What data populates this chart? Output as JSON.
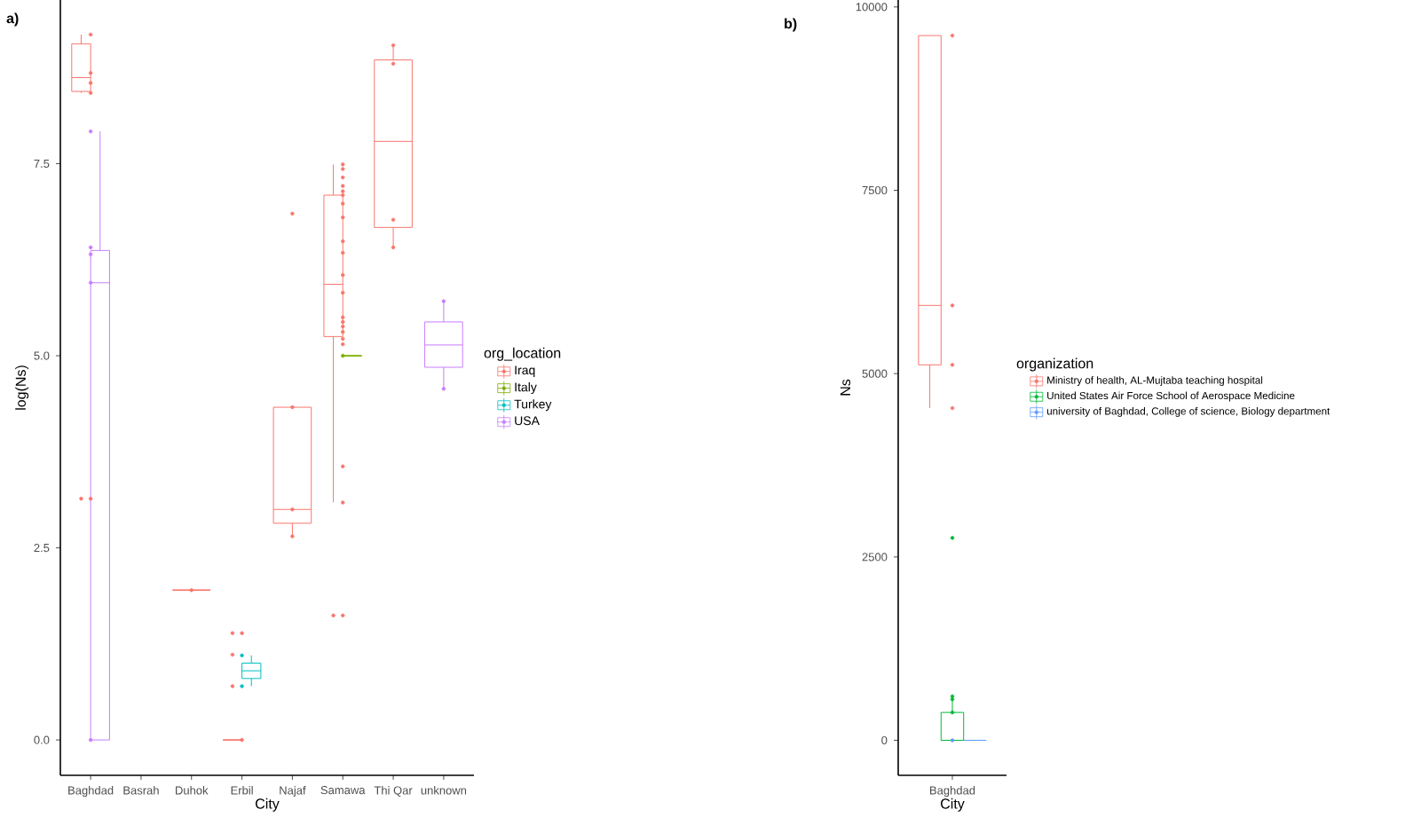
{
  "chart_data": [
    {
      "type": "box",
      "title": "a)",
      "xlabel": "City",
      "ylabel": "log(Ns)",
      "legend_title": "org_location",
      "legend": "right",
      "marker": "circle",
      "categories": [
        "Baghdad",
        "Basrah",
        "Duhok",
        "Erbil",
        "Najaf",
        "Samawa",
        "Thi Qar",
        "unknown"
      ],
      "ylim": [
        -0.46,
        9.63
      ],
      "yticks": [
        {
          "value": 0,
          "label": "0.0"
        },
        {
          "value": 2.5,
          "label": "2.5"
        },
        {
          "value": 5,
          "label": "5.0"
        },
        {
          "value": 7.5,
          "label": "7.5"
        }
      ],
      "series": [
        {
          "name": "Iraq",
          "color": "#f8766d",
          "boxes": [
            {
              "low": 8.42,
              "q1": 8.44,
              "median": 8.62,
              "q3": 9.06,
              "high": 9.18,
              "outliers": [
                3.14
              ]
            },
            null,
            {
              "low": 1.95,
              "q1": 1.95,
              "median": 1.95,
              "q3": 1.95,
              "high": 1.95
            },
            {
              "low": 0,
              "q1": 0,
              "median": 0,
              "q3": 0,
              "high": 0,
              "outliers": [
                0.7,
                1.11,
                1.39
              ]
            },
            {
              "low": 2.65,
              "q1": 2.82,
              "median": 3.0,
              "q3": 4.33,
              "high": 4.33
            },
            {
              "low": 3.09,
              "q1": 5.25,
              "median": 5.93,
              "q3": 7.09,
              "high": 7.49,
              "outliers": [
                1.62
              ]
            },
            {
              "low": 6.41,
              "q1": 6.67,
              "median": 7.79,
              "q3": 8.85,
              "high": 9.04
            },
            null
          ]
        },
        {
          "name": "Italy",
          "color": "#7cae00",
          "boxes": [
            null,
            null,
            null,
            null,
            null,
            {
              "low": 5.0,
              "q1": 5.0,
              "median": 5.0,
              "q3": 5.0,
              "high": 5.0
            },
            null,
            null
          ]
        },
        {
          "name": "Turkey",
          "color": "#00bfc4",
          "boxes": [
            null,
            null,
            null,
            {
              "low": 0.7,
              "q1": 0.8,
              "median": 0.9,
              "q3": 1.0,
              "high": 1.1
            },
            null,
            null,
            null,
            null
          ]
        },
        {
          "name": "USA",
          "color": "#c77cff",
          "boxes": [
            {
              "low": 0,
              "q1": 0,
              "median": 5.95,
              "q3": 6.37,
              "high": 7.92
            },
            null,
            null,
            null,
            null,
            null,
            null,
            {
              "low": 4.57,
              "q1": 4.85,
              "median": 5.14,
              "q3": 5.44,
              "high": 5.71
            }
          ]
        },
        {
          "type": "scatter",
          "color": "#f8766d",
          "x": [
            "Baghdad",
            "Baghdad",
            "Baghdad",
            "Baghdad",
            "Baghdad",
            "Duhok",
            "Erbil",
            "Erbil",
            "Najaf",
            "Najaf",
            "Najaf",
            "Najaf",
            "Samawa",
            "Samawa",
            "Samawa",
            "Samawa",
            "Samawa",
            "Samawa",
            "Samawa",
            "Samawa",
            "Samawa",
            "Samawa",
            "Samawa",
            "Samawa",
            "Samawa",
            "Samawa",
            "Samawa",
            "Samawa",
            "Samawa",
            "Samawa",
            "Samawa",
            "Samawa",
            "Samawa",
            "Samawa",
            "Thi Qar",
            "Thi Qar",
            "Thi Qar",
            "Thi Qar"
          ],
          "values": [
            9.18,
            8.68,
            8.55,
            8.42,
            3.14,
            1.95,
            1.39,
            0,
            6.85,
            4.33,
            3.0,
            2.65,
            7.49,
            7.43,
            7.32,
            7.21,
            7.14,
            7.09,
            6.98,
            6.8,
            6.49,
            6.34,
            6.05,
            5.82,
            5.5,
            5.44,
            5.38,
            5.31,
            5.22,
            5.15,
            null,
            3.56,
            3.09,
            1.62,
            9.04,
            8.8,
            6.77,
            6.41
          ]
        },
        {
          "type": "scatter",
          "color": "#7cae00",
          "x": [
            "Samawa"
          ],
          "values": [
            5.0
          ]
        },
        {
          "type": "scatter",
          "color": "#00bfc4",
          "x": [
            "Erbil",
            "Erbil"
          ],
          "values": [
            1.1,
            0.7
          ]
        },
        {
          "type": "scatter",
          "color": "#c77cff",
          "x": [
            "Baghdad",
            "Baghdad",
            "Baghdad",
            "Baghdad",
            "Baghdad",
            "unknown",
            "unknown"
          ],
          "values": [
            7.92,
            6.41,
            6.32,
            5.95,
            0,
            5.71,
            4.57
          ]
        }
      ]
    },
    {
      "type": "box",
      "title": "b)",
      "xlabel": "City",
      "ylabel": "Ns",
      "legend_title": "organization",
      "legend": "right",
      "marker": "circle",
      "categories": [
        "Baghdad"
      ],
      "ylim": [
        -477,
        10095
      ],
      "yticks": [
        0,
        2500,
        5000,
        7500,
        10000
      ],
      "series": [
        {
          "name": "Ministry of health, AL-Mujtaba teaching hospital",
          "color": "#f8766d",
          "boxes": [
            {
              "low": 4530,
              "q1": 5120,
              "median": 5930,
              "q3": 9610,
              "high": 9610
            }
          ]
        },
        {
          "name": "United States Air Force School of Aerospace Medicine",
          "color": "#00ba38",
          "boxes": [
            {
              "low": 0,
              "q1": 0,
              "median": 0,
              "q3": 380,
              "high": 600
            }
          ]
        },
        {
          "name": "university of Baghdad, College of science, Biology department",
          "color": "#619cff",
          "boxes": [
            {
              "low": 0,
              "q1": 0,
              "median": 0,
              "q3": 0,
              "high": 0
            }
          ]
        },
        {
          "type": "scatter",
          "color": "#f8766d",
          "x": [
            "Baghdad",
            "Baghdad",
            "Baghdad",
            "Baghdad"
          ],
          "values": [
            9610,
            5930,
            5120,
            4530
          ]
        },
        {
          "type": "scatter",
          "color": "#00ba38",
          "x": [
            "Baghdad",
            "Baghdad",
            "Baghdad",
            "Baghdad"
          ],
          "values": [
            2760,
            600,
            560,
            380
          ]
        },
        {
          "type": "scatter",
          "color": "#619cff",
          "x": [
            "Baghdad"
          ],
          "values": [
            0
          ]
        }
      ]
    }
  ]
}
